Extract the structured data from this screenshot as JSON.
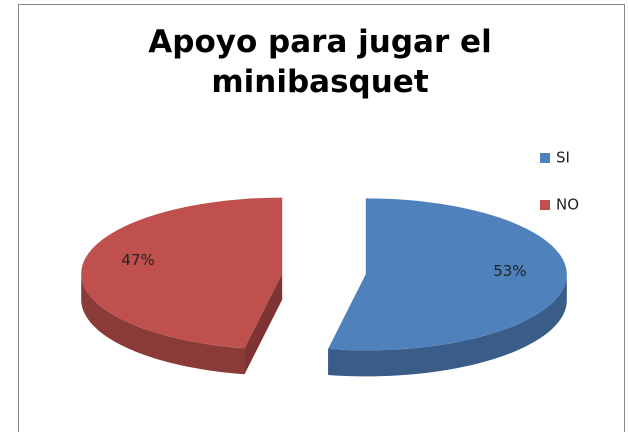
{
  "chart_data": {
    "type": "pie",
    "title": "Apoyo para jugar el minibasquet",
    "categories": [
      "SI",
      "NO"
    ],
    "values": [
      53,
      47
    ],
    "value_labels": [
      "53%",
      "47%"
    ],
    "colors": [
      "#4f81bd",
      "#c0504d"
    ],
    "legend": "right",
    "three_d": true,
    "exploded": true
  }
}
